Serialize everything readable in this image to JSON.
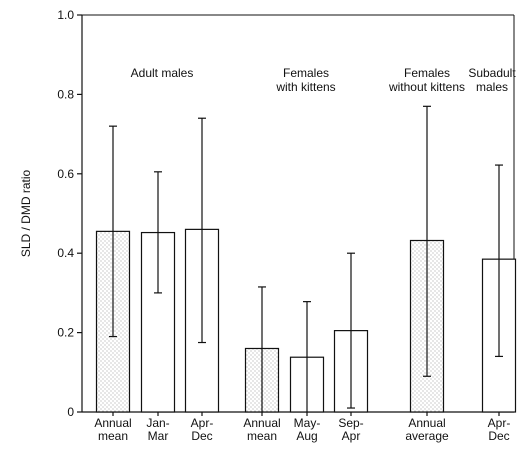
{
  "chart_data": {
    "type": "bar",
    "ylabel": "SLD / DMD ratio",
    "ylim": [
      0,
      1.0
    ],
    "yticks": [
      "0",
      "0.2",
      "0.4",
      "0.6",
      "0.8",
      "1.0"
    ],
    "grid": false,
    "colors": {
      "axis": "#111111",
      "bar_outline": "#111111",
      "stipple": "#8a8a8a",
      "background": "#ffffff"
    },
    "groups": [
      {
        "label": [
          "Adult males"
        ],
        "bars": [
          {
            "label": [
              "Annual",
              "mean"
            ],
            "value": 0.455,
            "err_low": 0.19,
            "err_high": 0.72,
            "stippled": true
          },
          {
            "label": [
              "Jan-",
              "Mar"
            ],
            "value": 0.452,
            "err_low": 0.3,
            "err_high": 0.605,
            "stippled": false
          },
          {
            "label": [
              "Apr-",
              "Dec"
            ],
            "value": 0.46,
            "err_low": 0.175,
            "err_high": 0.74,
            "stippled": false
          }
        ]
      },
      {
        "label": [
          "Females",
          "with kittens"
        ],
        "bars": [
          {
            "label": [
              "Annual",
              "mean"
            ],
            "value": 0.16,
            "err_low": 0.0,
            "err_high": 0.315,
            "stippled": true
          },
          {
            "label": [
              "May-",
              "Aug"
            ],
            "value": 0.138,
            "err_low": 0.0,
            "err_high": 0.278,
            "stippled": false
          },
          {
            "label": [
              "Sep-",
              "Apr"
            ],
            "value": 0.205,
            "err_low": 0.01,
            "err_high": 0.4,
            "stippled": false
          }
        ]
      },
      {
        "label": [
          "Females",
          "without kittens"
        ],
        "bars": [
          {
            "label": [
              "Annual",
              "average"
            ],
            "value": 0.432,
            "err_low": 0.09,
            "err_high": 0.77,
            "stippled": true
          }
        ]
      },
      {
        "label": [
          "Subadult",
          "males"
        ],
        "bars": [
          {
            "label": [
              "Apr-",
              "Dec"
            ],
            "value": 0.385,
            "err_low": 0.14,
            "err_high": 0.622,
            "stippled": false
          }
        ]
      }
    ]
  }
}
